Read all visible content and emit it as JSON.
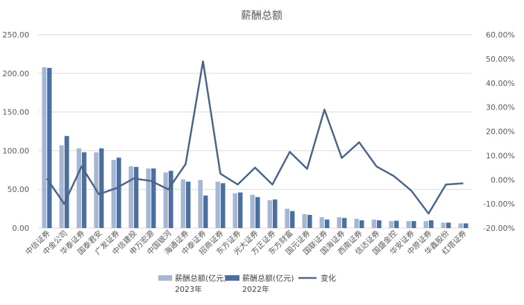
{
  "chart_data": {
    "type": "bar",
    "title": "薪酬总额",
    "categories": [
      "中信证券",
      "中金公司",
      "华泰证券",
      "国泰君安",
      "广发证券",
      "中信建投",
      "申万宏源",
      "中国银河",
      "海通证券",
      "中泰证券",
      "招商证券",
      "东方证券",
      "光大证券",
      "方正证券",
      "东方财富",
      "国元证券",
      "国联证券",
      "国海证券",
      "西南证券",
      "信达证券",
      "国盛金控",
      "华安证券",
      "中原证券",
      "华鑫股份",
      "红塔证券"
    ],
    "series": [
      {
        "name": "薪酬总额(亿元) 2023年",
        "axis": "left",
        "type": "bar",
        "color": "#a7b6d2",
        "values": [
          208,
          107,
          103,
          98,
          88,
          80,
          77,
          72,
          63,
          62,
          60,
          45,
          43,
          36,
          25,
          18,
          14,
          14,
          12,
          11,
          9,
          9,
          9,
          7,
          6
        ]
      },
      {
        "name": "薪酬总额(亿元) 2022年",
        "axis": "right_bar",
        "type": "bar",
        "color": "#4a6fa0",
        "values": [
          207,
          119,
          98,
          103,
          91,
          79,
          77,
          74,
          60,
          42,
          58,
          46,
          40,
          37,
          22,
          17,
          11,
          13,
          10,
          10,
          9.5,
          9,
          10,
          7,
          6
        ]
      },
      {
        "name": "变化",
        "axis": "right",
        "type": "line",
        "color": "#4a6589",
        "values": [
          0.5,
          -10,
          5.5,
          -6,
          -3.5,
          0.5,
          -0.5,
          -4,
          6.5,
          49,
          2.5,
          -2,
          5,
          -2,
          11.5,
          4.5,
          29,
          9,
          15.5,
          5.5,
          1.5,
          -4.5,
          -14,
          -2,
          -1.5
        ]
      }
    ],
    "y_left": {
      "min": 0,
      "max": 250,
      "ticks": [
        "0.00",
        "50.00",
        "100.00",
        "150.00",
        "200.00",
        "250.00"
      ]
    },
    "y_right": {
      "min": -20,
      "max": 60,
      "ticks": [
        "-20.00%",
        "-10.00%",
        "0.00%",
        "10.00%",
        "20.00%",
        "30.00%",
        "40.00%",
        "50.00%",
        "60.00%"
      ]
    },
    "grid": true,
    "legend": [
      {
        "label": "薪酬总额(亿元)",
        "sub": "2023年",
        "kind": "bar",
        "color": "#a7b6d2"
      },
      {
        "label": "薪酬总额(亿元)",
        "sub": "2022年",
        "kind": "bar",
        "color": "#4a6fa0"
      },
      {
        "label": "变化",
        "sub": "",
        "kind": "line",
        "color": "#4a6589"
      }
    ],
    "legend_position": "bottom"
  }
}
